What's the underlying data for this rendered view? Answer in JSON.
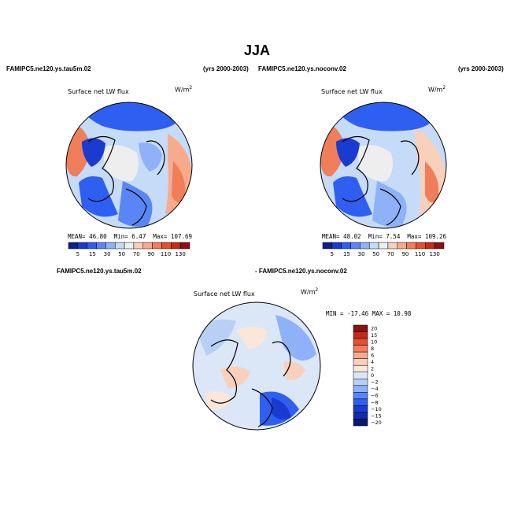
{
  "figure": {
    "title": "JJA"
  },
  "panels": [
    {
      "case_left": "FAMIPC5.ne120.ys.tau5m.02",
      "years": "(yrs 2000-2003)",
      "field": "Surface net LW flux",
      "units": "W/m",
      "units_exp": "2",
      "stats": {
        "mean_label": "MEAN=",
        "mean": "46.80",
        "min_label": "Min=",
        "min": "6.47",
        "max_label": "Max=",
        "max": "107.69"
      }
    },
    {
      "case_left": "FAMIPC5.ne120.ys.noconv.02",
      "years": "(yrs 2000-2003)",
      "field": "Surface net LW flux",
      "units": "W/m",
      "units_exp": "2",
      "stats": {
        "mean_label": "MEAN=",
        "mean": "48.02",
        "min_label": "Min=",
        "min": "7.54",
        "max_label": "Max=",
        "max": "109.26"
      }
    }
  ],
  "diff_panel": {
    "case_left": "FAMIPC5.ne120.ys.tau5m.02",
    "case_right": "- FAMIPC5.ne120.ys.noconv.02",
    "field": "Surface net LW flux",
    "units": "W/m",
    "units_exp": "2",
    "minmax": "MIN = -17.46  MAX =  10.98"
  },
  "colorbar_abs": {
    "labels": [
      "5",
      "15",
      "30",
      "50",
      "70",
      "90",
      "110",
      "130"
    ],
    "colors": [
      "#0c1f8a",
      "#1a3bd0",
      "#2f5ff0",
      "#5a86f5",
      "#8eb1f7",
      "#c6dbf7",
      "#eeeeee",
      "#f9d0bc",
      "#f7ab8c",
      "#f07e5a",
      "#e2512f",
      "#c52a19",
      "#8c1010"
    ]
  },
  "colorbar_diff": {
    "labels": [
      "20",
      "15",
      "10",
      "8",
      "6",
      "4",
      "2",
      "0",
      "−2",
      "−4",
      "−6",
      "−8",
      "−10",
      "−15",
      "−20"
    ],
    "colors": [
      "#8c1010",
      "#c52a19",
      "#e2512f",
      "#f07e5a",
      "#f7ab8c",
      "#f9d0bc",
      "#fbe6da",
      "#dbe7f7",
      "#b8d0f5",
      "#8eb1f7",
      "#5a86f5",
      "#2f5ff0",
      "#1a3bd0",
      "#102aa8",
      "#081870"
    ]
  }
}
